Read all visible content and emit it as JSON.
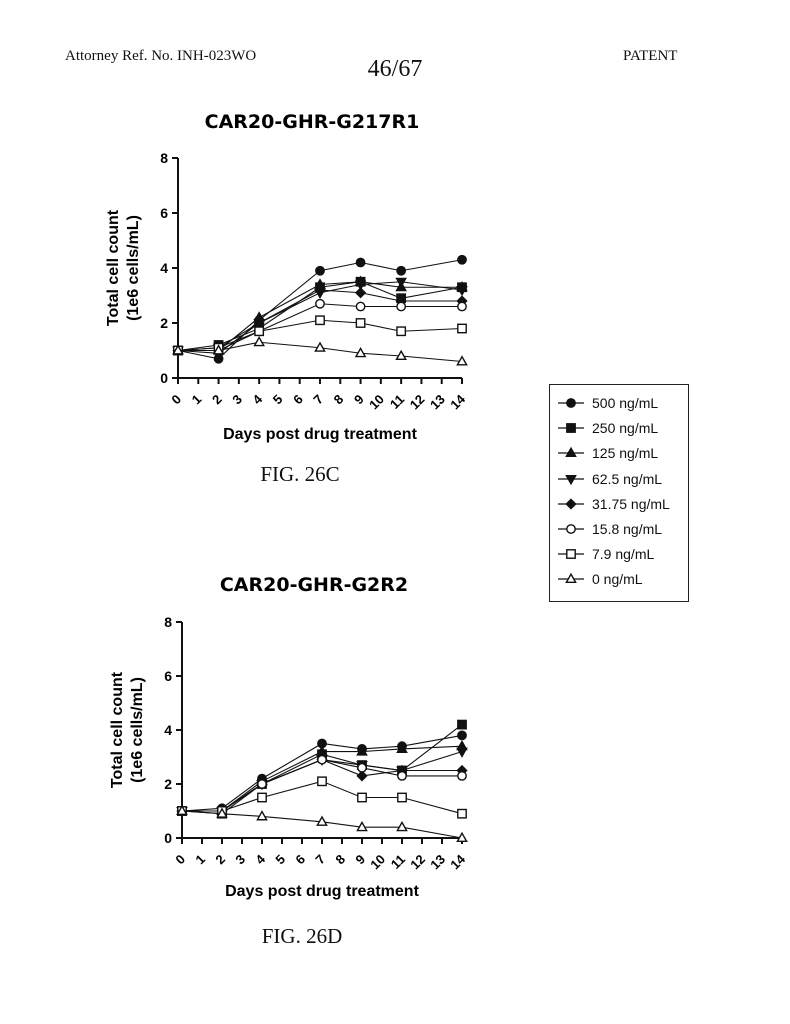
{
  "header": {
    "attorney_ref": "Attorney Ref. No. INH-023WO",
    "page_number": "46/67",
    "patent_label": "PATENT"
  },
  "legend": {
    "items": [
      {
        "label": "500 ng/mL",
        "marker": "filled-circle"
      },
      {
        "label": "250 ng/mL",
        "marker": "filled-square"
      },
      {
        "label": "125 ng/mL",
        "marker": "filled-triangle-up"
      },
      {
        "label": "62.5 ng/mL",
        "marker": "filled-triangle-down"
      },
      {
        "label": "31.75 ng/mL",
        "marker": "filled-diamond"
      },
      {
        "label": "15.8 ng/mL",
        "marker": "open-circle"
      },
      {
        "label": "7.9 ng/mL",
        "marker": "open-square"
      },
      {
        "label": "0 ng/mL",
        "marker": "open-triangle-up"
      }
    ]
  },
  "chart_data": [
    {
      "type": "line",
      "caption": "FIG. 26C",
      "title": "CAR20-GHR-G217R1",
      "xlabel": "Days post drug treatment",
      "ylabel_line1": "Total cell count",
      "ylabel_line2": "(1e6 cells/mL)",
      "xlim": [
        0,
        14
      ],
      "ylim": [
        0,
        8
      ],
      "x_ticks": [
        "0",
        "1",
        "2",
        "3",
        "4",
        "5",
        "6",
        "7",
        "8",
        "9",
        "10",
        "11",
        "12",
        "13",
        "14"
      ],
      "y_ticks": [
        "0",
        "2",
        "4",
        "6",
        "8"
      ],
      "x": [
        0,
        2,
        4,
        7,
        9,
        11,
        14
      ],
      "series": [
        {
          "name": "500 ng/mL",
          "marker": "filled-circle",
          "values": [
            1.0,
            0.7,
            2.1,
            3.9,
            4.2,
            3.9,
            4.3
          ]
        },
        {
          "name": "250 ng/mL",
          "marker": "filled-square",
          "values": [
            1.0,
            1.2,
            1.8,
            3.3,
            3.5,
            2.9,
            3.3
          ]
        },
        {
          "name": "125 ng/mL",
          "marker": "filled-triangle-up",
          "values": [
            1.0,
            1.0,
            2.2,
            3.4,
            3.5,
            3.3,
            3.3
          ]
        },
        {
          "name": "62.5 ng/mL",
          "marker": "filled-triangle-down",
          "values": [
            1.0,
            1.1,
            2.0,
            3.1,
            3.4,
            3.5,
            3.2
          ]
        },
        {
          "name": "31.75 ng/mL",
          "marker": "filled-diamond",
          "values": [
            1.0,
            0.9,
            2.0,
            3.2,
            3.1,
            2.8,
            2.8
          ]
        },
        {
          "name": "15.8 ng/mL",
          "marker": "open-circle",
          "values": [
            1.0,
            1.0,
            1.7,
            2.7,
            2.6,
            2.6,
            2.6
          ]
        },
        {
          "name": "7.9 ng/mL",
          "marker": "open-square",
          "values": [
            1.0,
            1.1,
            1.7,
            2.1,
            2.0,
            1.7,
            1.8
          ]
        },
        {
          "name": "0 ng/mL",
          "marker": "open-triangle-up",
          "values": [
            1.0,
            1.0,
            1.3,
            1.1,
            0.9,
            0.8,
            0.6
          ]
        }
      ]
    },
    {
      "type": "line",
      "caption": "FIG. 26D",
      "title": "CAR20-GHR-G2R2",
      "xlabel": "Days post drug treatment",
      "ylabel_line1": "Total cell count",
      "ylabel_line2": "(1e6 cells/mL)",
      "xlim": [
        0,
        14
      ],
      "ylim": [
        0,
        8
      ],
      "x_ticks": [
        "0",
        "1",
        "2",
        "3",
        "4",
        "5",
        "6",
        "7",
        "8",
        "9",
        "10",
        "11",
        "12",
        "13",
        "14"
      ],
      "y_ticks": [
        "0",
        "2",
        "4",
        "6",
        "8"
      ],
      "x": [
        0,
        2,
        4,
        7,
        9,
        11,
        14
      ],
      "series": [
        {
          "name": "500 ng/mL",
          "marker": "filled-circle",
          "values": [
            1.0,
            1.1,
            2.2,
            3.5,
            3.3,
            3.4,
            3.8
          ]
        },
        {
          "name": "250 ng/mL",
          "marker": "filled-square",
          "values": [
            1.0,
            0.9,
            2.0,
            3.1,
            2.7,
            2.5,
            4.2
          ]
        },
        {
          "name": "125 ng/mL",
          "marker": "filled-triangle-up",
          "values": [
            1.0,
            1.0,
            2.1,
            3.2,
            3.2,
            3.3,
            3.4
          ]
        },
        {
          "name": "62.5 ng/mL",
          "marker": "filled-triangle-down",
          "values": [
            1.0,
            1.0,
            2.0,
            2.9,
            2.7,
            2.5,
            3.2
          ]
        },
        {
          "name": "31.75 ng/mL",
          "marker": "filled-diamond",
          "values": [
            1.0,
            1.0,
            2.0,
            2.9,
            2.3,
            2.5,
            2.5
          ]
        },
        {
          "name": "15.8 ng/mL",
          "marker": "open-circle",
          "values": [
            1.0,
            1.0,
            2.0,
            2.9,
            2.6,
            2.3,
            2.3
          ]
        },
        {
          "name": "7.9 ng/mL",
          "marker": "open-square",
          "values": [
            1.0,
            1.0,
            1.5,
            2.1,
            1.5,
            1.5,
            0.9
          ]
        },
        {
          "name": "0 ng/mL",
          "marker": "open-triangle-up",
          "values": [
            1.0,
            0.9,
            0.8,
            0.6,
            0.4,
            0.4,
            0.0
          ]
        }
      ]
    }
  ]
}
